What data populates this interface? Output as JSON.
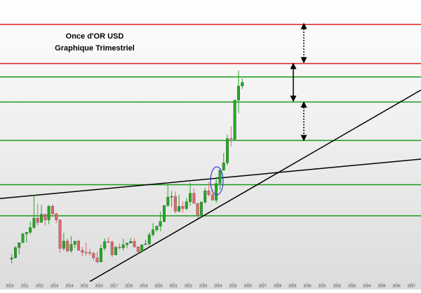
{
  "chart_data": {
    "type": "candlestick",
    "title": "Once d'OR USD",
    "subtitle": "Graphique Trimestriel",
    "open": [
      1097,
      1113,
      1244,
      1307,
      1421,
      1439,
      1500,
      1620,
      1565,
      1668,
      1598,
      1772,
      1675,
      1596,
      1234,
      1327,
      1202,
      1284,
      1327,
      1210,
      1184,
      1183,
      1172,
      1115,
      1061,
      1235,
      1322,
      1316,
      1152,
      1249,
      1242,
      1280,
      1303,
      1325,
      1253,
      1192,
      1282,
      1292,
      1409,
      1472,
      1517,
      1577,
      1781,
      1887,
      1898,
      1708,
      1770,
      1742,
      1829,
      1937,
      1807,
      1661,
      1824,
      1969,
      1919,
      1849,
      2063,
      2230,
      2326,
      2634,
      2624,
      3124,
      3303
    ],
    "high": [
      1162,
      1266,
      1307,
      1431,
      1447,
      1577,
      1921,
      1803,
      1791,
      1676,
      1788,
      1796,
      1694,
      1605,
      1434,
      1361,
      1392,
      1331,
      1345,
      1255,
      1307,
      1232,
      1191,
      1191,
      1282,
      1362,
      1375,
      1337,
      1264,
      1296,
      1357,
      1306,
      1366,
      1365,
      1265,
      1285,
      1346,
      1439,
      1557,
      1525,
      1704,
      1788,
      2075,
      1966,
      1959,
      1916,
      1834,
      1877,
      2070,
      1998,
      1814,
      1833,
      2009,
      2079,
      1987,
      2146,
      2236,
      2450,
      2685,
      2790,
      3128,
      3500,
      3400
    ],
    "low": [
      1045,
      1104,
      1157,
      1308,
      1309,
      1415,
      1478,
      1523,
      1563,
      1527,
      1540,
      1636,
      1555,
      1180,
      1208,
      1180,
      1182,
      1240,
      1206,
      1131,
      1142,
      1142,
      1077,
      1046,
      1062,
      1208,
      1302,
      1123,
      1147,
      1214,
      1204,
      1236,
      1303,
      1247,
      1160,
      1183,
      1276,
      1266,
      1382,
      1445,
      1451,
      1568,
      1765,
      1764,
      1677,
      1690,
      1688,
      1722,
      1780,
      1805,
      1614,
      1617,
      1804,
      1893,
      1848,
      1810,
      1984,
      2228,
      2293,
      2537,
      2614,
      2957,
      3268
    ],
    "close": [
      1113,
      1244,
      1307,
      1421,
      1439,
      1500,
      1620,
      1565,
      1668,
      1598,
      1772,
      1675,
      1596,
      1234,
      1327,
      1202,
      1284,
      1327,
      1210,
      1184,
      1183,
      1172,
      1115,
      1061,
      1235,
      1322,
      1316,
      1152,
      1249,
      1242,
      1280,
      1303,
      1325,
      1253,
      1192,
      1282,
      1292,
      1409,
      1472,
      1517,
      1577,
      1781,
      1887,
      1898,
      1708,
      1770,
      1742,
      1829,
      1937,
      1807,
      1661,
      1824,
      1969,
      1919,
      1849,
      2063,
      2230,
      2326,
      2634,
      2624,
      3124,
      3303,
      3350
    ],
    "up_color": "#22a822",
    "down_color": "#e06868",
    "xlim": [
      2009.34,
      2037.64
    ],
    "xticks": [
      2010,
      2011,
      2012,
      2013,
      2014,
      2015,
      2016,
      2017,
      2018,
      2019,
      2020,
      2021,
      2022,
      2023,
      2024,
      2025,
      2026,
      2027,
      2028,
      2029,
      2030,
      2031,
      2032,
      2033,
      2034,
      2035,
      2036,
      2037
    ],
    "ylim": [
      800,
      4400
    ],
    "hlines": [
      {
        "value": 4090,
        "color": "#e02020"
      },
      {
        "value": 3590,
        "color": "#e02020"
      },
      {
        "value": 3420,
        "color": "#1a9a1a"
      },
      {
        "value": 3100,
        "color": "#1a9a1a"
      },
      {
        "value": 2610,
        "color": "#1a9a1a"
      },
      {
        "value": 2046,
        "color": "#1a9a1a"
      },
      {
        "value": 1650,
        "color": "#1a9a1a"
      }
    ],
    "trendlines": [
      {
        "x": [
          2009.34,
          2037.64
        ],
        "y": [
          1870,
          2372
        ]
      },
      {
        "x": [
          2015.38,
          2037.64
        ],
        "y": [
          813,
          3253
        ]
      }
    ]
  }
}
